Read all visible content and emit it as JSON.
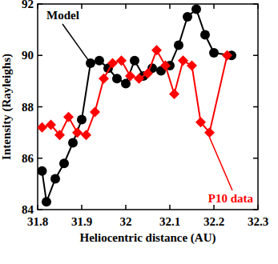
{
  "chart_data": {
    "type": "line",
    "x_label": "Heliocentric distance (AU)",
    "y_label": "Intensity (Rayleighs)",
    "xlim": [
      31.8,
      32.3
    ],
    "xticks": [
      31.8,
      31.9,
      32,
      32.1,
      32.2,
      32.3
    ],
    "ylim": [
      84,
      92
    ],
    "yticks": [
      84,
      86,
      88,
      90,
      92
    ],
    "grid": false,
    "series": [
      {
        "name": "Model",
        "color": "#000000",
        "marker": "circle",
        "line_style": "solid",
        "x": [
          31.81,
          31.82,
          31.84,
          31.86,
          31.88,
          31.9,
          31.92,
          31.94,
          31.96,
          31.98,
          32.0,
          32.02,
          32.04,
          32.06,
          32.08,
          32.1,
          32.12,
          32.14,
          32.16,
          32.18,
          32.2,
          32.24
        ],
        "values": [
          85.5,
          84.3,
          85.2,
          85.8,
          86.6,
          87.5,
          89.7,
          89.8,
          89.5,
          89.1,
          88.9,
          89.8,
          89.2,
          89.5,
          89.4,
          89.6,
          90.4,
          91.5,
          91.8,
          90.8,
          90.1,
          90.0
        ]
      },
      {
        "name": "P10 data",
        "color": "#ff0000",
        "marker": "diamond",
        "line_style": "solid",
        "x": [
          31.81,
          31.83,
          31.85,
          31.87,
          31.89,
          31.91,
          31.93,
          31.95,
          31.97,
          31.99,
          32.01,
          32.03,
          32.05,
          32.07,
          32.09,
          32.11,
          32.13,
          32.15,
          32.17,
          32.19,
          32.23
        ],
        "values": [
          87.2,
          87.3,
          86.9,
          87.6,
          87.0,
          86.9,
          87.8,
          89.1,
          89.7,
          89.8,
          89.2,
          89.1,
          89.3,
          90.2,
          89.6,
          88.5,
          89.8,
          89.6,
          87.4,
          87.0,
          90.0
        ]
      }
    ]
  }
}
